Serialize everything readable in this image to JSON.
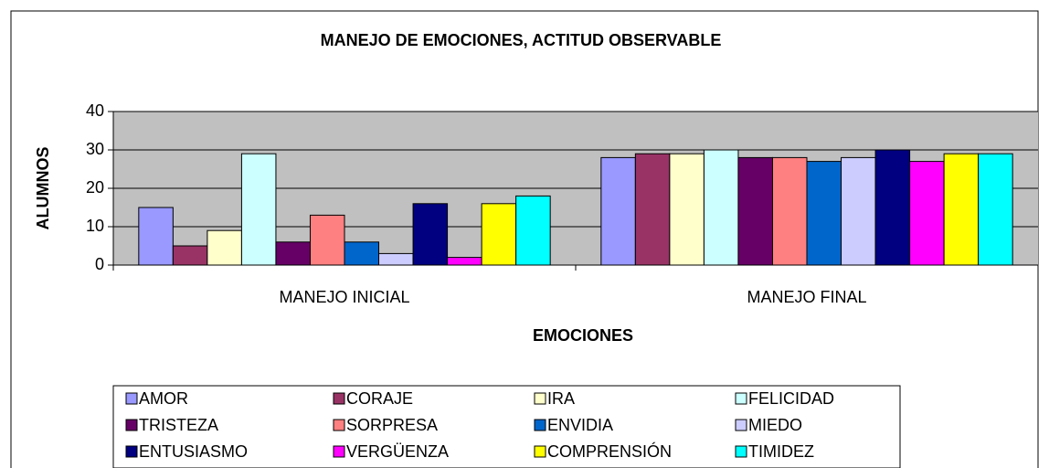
{
  "chart_data": {
    "type": "bar",
    "title": "MANEJO DE EMOCIONES,  ACTITUD OBSERVABLE",
    "x_label": "EMOCIONES",
    "y_label": "ALUMNOS",
    "categories": [
      "MANEJO INICIAL",
      "MANEJO FINAL"
    ],
    "ylim": [
      0,
      40
    ],
    "yticks": [
      0,
      10,
      20,
      30,
      40
    ],
    "grid": true,
    "series": [
      {
        "name": "AMOR",
        "color": "#9999ff",
        "values": [
          15,
          28
        ]
      },
      {
        "name": "CORAJE",
        "color": "#993366",
        "values": [
          5,
          29
        ]
      },
      {
        "name": "IRA",
        "color": "#ffffcc",
        "values": [
          9,
          29
        ]
      },
      {
        "name": "FELICIDAD",
        "color": "#ccffff",
        "values": [
          29,
          30
        ]
      },
      {
        "name": "TRISTEZA",
        "color": "#660066",
        "values": [
          6,
          28
        ]
      },
      {
        "name": "SORPRESA",
        "color": "#ff8080",
        "values": [
          13,
          28
        ]
      },
      {
        "name": "ENVIDIA",
        "color": "#0066cc",
        "values": [
          6,
          27
        ]
      },
      {
        "name": "MIEDO",
        "color": "#ccccff",
        "values": [
          3,
          28
        ]
      },
      {
        "name": "ENTUSIASMO",
        "color": "#000080",
        "values": [
          16,
          30
        ]
      },
      {
        "name": "VERGÜENZA",
        "color": "#ff00ff",
        "values": [
          2,
          27
        ]
      },
      {
        "name": "COMPRENSIÓN",
        "color": "#ffff00",
        "values": [
          16,
          29
        ]
      },
      {
        "name": "TIMIDEZ",
        "color": "#00ffff",
        "values": [
          18,
          29
        ]
      }
    ]
  }
}
